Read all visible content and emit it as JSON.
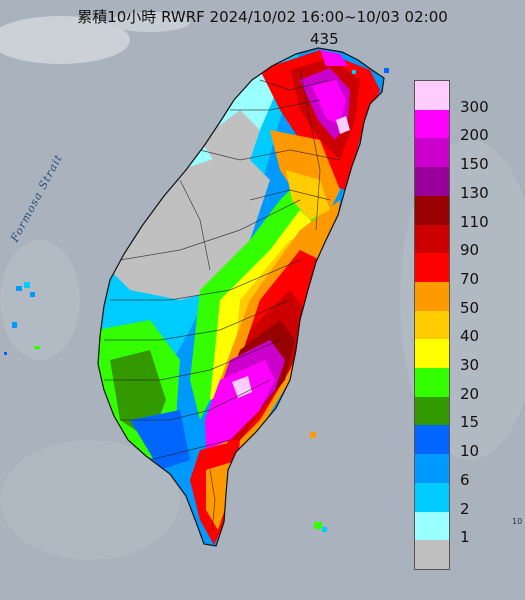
{
  "title": "累積10小時 RWRF 2024/10/02 16:00~10/03 02:00",
  "max_value": "435",
  "strait_label": "Formosa Strait",
  "edge_label": "10",
  "legend": {
    "colors": [
      "#ffccff",
      "#ff00ff",
      "#cc00cc",
      "#990099",
      "#990000",
      "#cc0000",
      "#ff0000",
      "#ff9900",
      "#ffcc00",
      "#ffff00",
      "#33ff00",
      "#339900",
      "#0066ff",
      "#0099ff",
      "#00ccff",
      "#99ffff",
      "#c0c0c0"
    ],
    "labels": [
      "300",
      "200",
      "150",
      "130",
      "110",
      "90",
      "70",
      "50",
      "40",
      "30",
      "20",
      "15",
      "10",
      "6",
      "2",
      "1"
    ]
  },
  "colors": {
    "sea": "#aab3bd",
    "land_edge": "#1a1a1a",
    "text": "#111111"
  }
}
